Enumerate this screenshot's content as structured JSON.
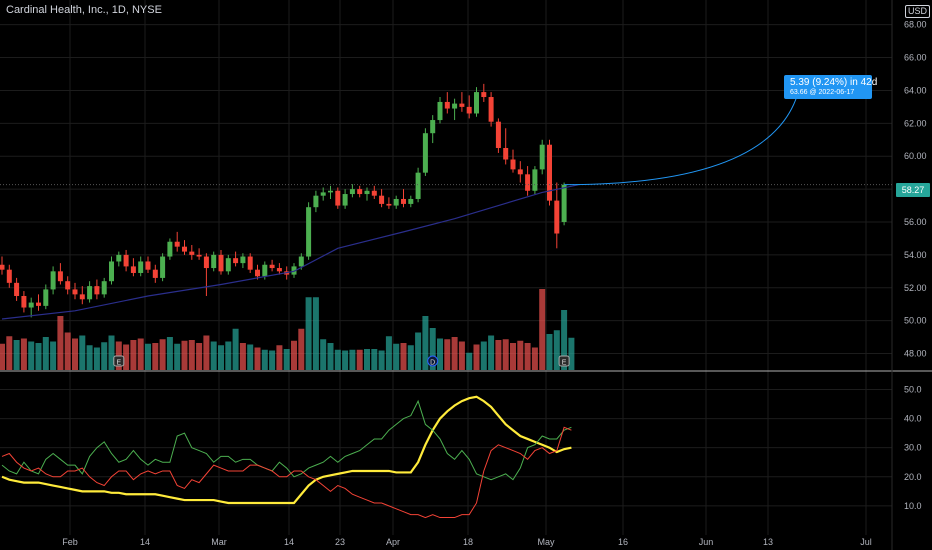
{
  "header": {
    "title": "Cardinal Health, Inc., 1D, NYSE",
    "currency": "USD"
  },
  "projection": {
    "change_text": "5.39 (9.24%) in 42d",
    "target_text": "63.66 @ 2022-06-17"
  },
  "last_price": "58.27",
  "colors": {
    "up": "#4caf50",
    "down": "#f44336",
    "vol_up": "#26a69a",
    "vol_down": "#ef5350",
    "ma": "#2a2e8c",
    "projection": "#2196f3",
    "adx": "#ffeb3b",
    "di_plus": "#4caf50",
    "di_minus": "#f44336"
  },
  "chart_data": [
    {
      "type": "candlestick",
      "title": "Cardinal Health, Inc., 1D, NYSE",
      "y_ticks": [
        "68.00",
        "66.00",
        "64.00",
        "62.00",
        "60.00",
        "58.00",
        "56.00",
        "54.00",
        "52.00",
        "50.00",
        "48.00"
      ],
      "ylim": [
        47.0,
        69.5
      ],
      "x_ticks": [
        "Feb",
        "14",
        "Mar",
        "14",
        "23",
        "Apr",
        "18",
        "May",
        "16",
        "Jun",
        "13",
        "Jul"
      ],
      "candles": [
        [
          53.4,
          53.9,
          52.8,
          53.1
        ],
        [
          53.1,
          53.4,
          52.0,
          52.3
        ],
        [
          52.3,
          52.6,
          51.2,
          51.5
        ],
        [
          51.5,
          51.8,
          50.5,
          50.8
        ],
        [
          50.8,
          51.4,
          50.2,
          51.1
        ],
        [
          51.1,
          51.6,
          50.6,
          50.9
        ],
        [
          50.9,
          52.2,
          50.7,
          51.9
        ],
        [
          51.9,
          53.3,
          51.6,
          53.0
        ],
        [
          53.0,
          53.5,
          52.2,
          52.4
        ],
        [
          52.4,
          52.7,
          51.6,
          51.9
        ],
        [
          51.9,
          52.3,
          51.3,
          51.6
        ],
        [
          51.6,
          52.1,
          51.0,
          51.3
        ],
        [
          51.3,
          52.4,
          51.1,
          52.1
        ],
        [
          52.1,
          52.5,
          51.3,
          51.6
        ],
        [
          51.6,
          52.6,
          51.4,
          52.4
        ],
        [
          52.4,
          53.9,
          52.2,
          53.6
        ],
        [
          53.6,
          54.2,
          53.3,
          54.0
        ],
        [
          54.0,
          54.3,
          53.0,
          53.3
        ],
        [
          53.3,
          53.8,
          52.7,
          52.9
        ],
        [
          52.9,
          53.9,
          52.7,
          53.6
        ],
        [
          53.6,
          53.9,
          52.9,
          53.1
        ],
        [
          53.1,
          53.4,
          52.3,
          52.6
        ],
        [
          52.6,
          54.1,
          52.4,
          53.9
        ],
        [
          53.9,
          55.0,
          53.7,
          54.8
        ],
        [
          54.8,
          55.4,
          54.2,
          54.5
        ],
        [
          54.5,
          54.9,
          54.0,
          54.2
        ],
        [
          54.2,
          54.6,
          53.7,
          54.0
        ],
        [
          54.0,
          54.4,
          53.7,
          53.9
        ],
        [
          53.9,
          54.1,
          51.5,
          53.2
        ],
        [
          53.2,
          54.2,
          53.0,
          54.0
        ],
        [
          54.0,
          54.3,
          52.8,
          53.0
        ],
        [
          53.0,
          54.0,
          52.8,
          53.8
        ],
        [
          53.8,
          54.2,
          53.3,
          53.5
        ],
        [
          53.5,
          54.1,
          53.2,
          53.9
        ],
        [
          53.9,
          54.1,
          52.9,
          53.1
        ],
        [
          53.1,
          53.4,
          52.5,
          52.7
        ],
        [
          52.7,
          53.6,
          52.5,
          53.4
        ],
        [
          53.4,
          53.7,
          53.0,
          53.2
        ],
        [
          53.2,
          53.5,
          52.8,
          53.0
        ],
        [
          53.0,
          53.3,
          52.5,
          52.8
        ],
        [
          52.8,
          53.5,
          52.6,
          53.3
        ],
        [
          53.3,
          54.1,
          53.1,
          53.9
        ],
        [
          53.9,
          57.2,
          53.7,
          56.9
        ],
        [
          56.9,
          57.9,
          56.6,
          57.6
        ],
        [
          57.6,
          58.1,
          57.3,
          57.8
        ],
        [
          57.8,
          58.2,
          57.4,
          57.9
        ],
        [
          57.9,
          58.1,
          56.8,
          57.0
        ],
        [
          57.0,
          58.0,
          56.8,
          57.7
        ],
        [
          57.7,
          58.3,
          57.5,
          58.0
        ],
        [
          58.0,
          58.2,
          57.5,
          57.7
        ],
        [
          57.7,
          58.1,
          57.3,
          57.9
        ],
        [
          57.9,
          58.2,
          57.4,
          57.6
        ],
        [
          57.6,
          58.0,
          56.9,
          57.1
        ],
        [
          57.1,
          57.5,
          56.8,
          57.0
        ],
        [
          57.0,
          57.6,
          56.8,
          57.4
        ],
        [
          57.4,
          58.0,
          56.9,
          57.1
        ],
        [
          57.1,
          57.6,
          56.9,
          57.4
        ],
        [
          57.4,
          59.3,
          57.2,
          59.0
        ],
        [
          59.0,
          61.7,
          58.8,
          61.4
        ],
        [
          61.4,
          62.5,
          60.8,
          62.2
        ],
        [
          62.2,
          63.6,
          62.0,
          63.3
        ],
        [
          63.3,
          63.9,
          62.6,
          62.9
        ],
        [
          62.9,
          63.5,
          62.2,
          63.2
        ],
        [
          63.2,
          63.9,
          62.7,
          63.0
        ],
        [
          63.0,
          63.7,
          62.3,
          62.6
        ],
        [
          62.6,
          64.2,
          62.4,
          63.9
        ],
        [
          63.9,
          64.4,
          63.3,
          63.6
        ],
        [
          63.6,
          63.9,
          61.8,
          62.1
        ],
        [
          62.1,
          62.3,
          60.2,
          60.5
        ],
        [
          60.5,
          61.7,
          59.5,
          59.8
        ],
        [
          59.8,
          60.4,
          59.0,
          59.2
        ],
        [
          59.2,
          59.7,
          58.4,
          58.9
        ],
        [
          58.9,
          59.4,
          57.6,
          57.9
        ],
        [
          57.9,
          59.4,
          57.7,
          59.2
        ],
        [
          59.2,
          61.0,
          58.9,
          60.7
        ],
        [
          60.7,
          61.0,
          57.0,
          57.3
        ],
        [
          57.3,
          58.4,
          54.4,
          55.3
        ],
        [
          56.0,
          58.4,
          55.8,
          58.27
        ]
      ],
      "moving_average": [
        [
          0,
          50.1
        ],
        [
          10,
          50.6
        ],
        [
          20,
          51.5
        ],
        [
          30,
          52.2
        ],
        [
          40,
          53.0
        ],
        [
          46,
          54.4
        ],
        [
          55,
          55.4
        ],
        [
          62,
          56.2
        ],
        [
          68,
          57.0
        ],
        [
          74,
          57.8
        ],
        [
          79,
          58.27
        ]
      ],
      "projection_target": {
        "price": 63.66,
        "date": "2022-06-17"
      },
      "volume": [
        [
          0.35,
          0
        ],
        [
          0.45,
          0
        ],
        [
          0.4,
          1
        ],
        [
          0.42,
          0
        ],
        [
          0.38,
          1
        ],
        [
          0.36,
          1
        ],
        [
          0.44,
          1
        ],
        [
          0.38,
          1
        ],
        [
          0.72,
          0
        ],
        [
          0.5,
          0
        ],
        [
          0.42,
          0
        ],
        [
          0.46,
          1
        ],
        [
          0.33,
          1
        ],
        [
          0.3,
          1
        ],
        [
          0.37,
          1
        ],
        [
          0.46,
          1
        ],
        [
          0.38,
          0
        ],
        [
          0.34,
          0
        ],
        [
          0.4,
          0
        ],
        [
          0.42,
          0
        ],
        [
          0.35,
          1
        ],
        [
          0.36,
          0
        ],
        [
          0.41,
          0
        ],
        [
          0.44,
          1
        ],
        [
          0.35,
          1
        ],
        [
          0.39,
          0
        ],
        [
          0.4,
          0
        ],
        [
          0.36,
          0
        ],
        [
          0.46,
          0
        ],
        [
          0.38,
          1
        ],
        [
          0.33,
          1
        ],
        [
          0.38,
          1
        ],
        [
          0.55,
          1
        ],
        [
          0.36,
          0
        ],
        [
          0.34,
          1
        ],
        [
          0.3,
          0
        ],
        [
          0.27,
          1
        ],
        [
          0.26,
          1
        ],
        [
          0.33,
          0
        ],
        [
          0.28,
          1
        ],
        [
          0.39,
          0
        ],
        [
          0.55,
          0
        ],
        [
          0.97,
          1
        ],
        [
          0.97,
          1
        ],
        [
          0.41,
          1
        ],
        [
          0.36,
          1
        ],
        [
          0.27,
          1
        ],
        [
          0.26,
          1
        ],
        [
          0.27,
          1
        ],
        [
          0.27,
          0
        ],
        [
          0.28,
          1
        ],
        [
          0.28,
          1
        ],
        [
          0.26,
          1
        ],
        [
          0.45,
          1
        ],
        [
          0.35,
          1
        ],
        [
          0.36,
          0
        ],
        [
          0.33,
          1
        ],
        [
          0.5,
          1
        ],
        [
          0.72,
          1
        ],
        [
          0.56,
          1
        ],
        [
          0.42,
          1
        ],
        [
          0.41,
          0
        ],
        [
          0.44,
          0
        ],
        [
          0.38,
          0
        ],
        [
          0.23,
          1
        ],
        [
          0.34,
          0
        ],
        [
          0.38,
          1
        ],
        [
          0.46,
          1
        ],
        [
          0.4,
          0
        ],
        [
          0.41,
          0
        ],
        [
          0.36,
          0
        ],
        [
          0.39,
          0
        ],
        [
          0.36,
          0
        ],
        [
          0.3,
          0
        ],
        [
          1.08,
          0
        ],
        [
          0.48,
          1
        ],
        [
          0.53,
          1
        ],
        [
          0.8,
          1
        ],
        [
          0.43,
          1
        ]
      ],
      "event_markers": [
        {
          "bar": 16,
          "glyph": "E"
        },
        {
          "bar": 59,
          "glyph": "D"
        },
        {
          "bar": 77,
          "glyph": "E"
        }
      ]
    },
    {
      "type": "line",
      "y_ticks": [
        "50.0",
        "40.0",
        "30.0",
        "20.0",
        "10.0"
      ],
      "ylim": [
        0,
        56
      ],
      "series": [
        {
          "key": "adx",
          "values": [
            20,
            19,
            18.5,
            18,
            18,
            18,
            17.5,
            17,
            16.5,
            16,
            15.5,
            15,
            15,
            15,
            15,
            14.5,
            14.5,
            14,
            14,
            14,
            14,
            14,
            13.5,
            13,
            12.5,
            12,
            12,
            12,
            12,
            12,
            11.5,
            11,
            11,
            11,
            11,
            11,
            11,
            11,
            11,
            11,
            11,
            14,
            17,
            19,
            20,
            20.5,
            21,
            21.5,
            22,
            22,
            22,
            22,
            22,
            22,
            21.5,
            21.5,
            21.5,
            25,
            31,
            36,
            40,
            42.5,
            44.5,
            46,
            47,
            47.5,
            46,
            44,
            41,
            38,
            36,
            34,
            33,
            32,
            31,
            30,
            28.5,
            29.5,
            30
          ]
        },
        {
          "key": "di_plus",
          "values": [
            24,
            22,
            21,
            25,
            22,
            21,
            26,
            28,
            26,
            24,
            24,
            21,
            27,
            30,
            32,
            28,
            25,
            26,
            29,
            26,
            24,
            26,
            25,
            25,
            34,
            35,
            30,
            29,
            28,
            25,
            27,
            27,
            25,
            26,
            26,
            24,
            23,
            22,
            25,
            23,
            20,
            21,
            23,
            24,
            25,
            27,
            25,
            27,
            28,
            29,
            31,
            33,
            33,
            36,
            38,
            40,
            41,
            46,
            38,
            36,
            33,
            28,
            26,
            29,
            26,
            21,
            20,
            19,
            20,
            21,
            19,
            23,
            30,
            31,
            34,
            33,
            33,
            36,
            37
          ]
        },
        {
          "key": "di_minus",
          "values": [
            27,
            28,
            25,
            23,
            22,
            23,
            21,
            20,
            20,
            22,
            22,
            23,
            20,
            18,
            17,
            20,
            22,
            22,
            19,
            21,
            22,
            21,
            22,
            22,
            17,
            16,
            19,
            18,
            21,
            24,
            23,
            22,
            22,
            22,
            24,
            24,
            23,
            22,
            20,
            20,
            22,
            22,
            20,
            19,
            17,
            15,
            17,
            16,
            14,
            13,
            12,
            11,
            11,
            10,
            9,
            8,
            7,
            7,
            6,
            7,
            6,
            6,
            6,
            7,
            7,
            11,
            22,
            29,
            31,
            30,
            29,
            28,
            26,
            29,
            30,
            28,
            29,
            37,
            36
          ]
        }
      ]
    }
  ]
}
